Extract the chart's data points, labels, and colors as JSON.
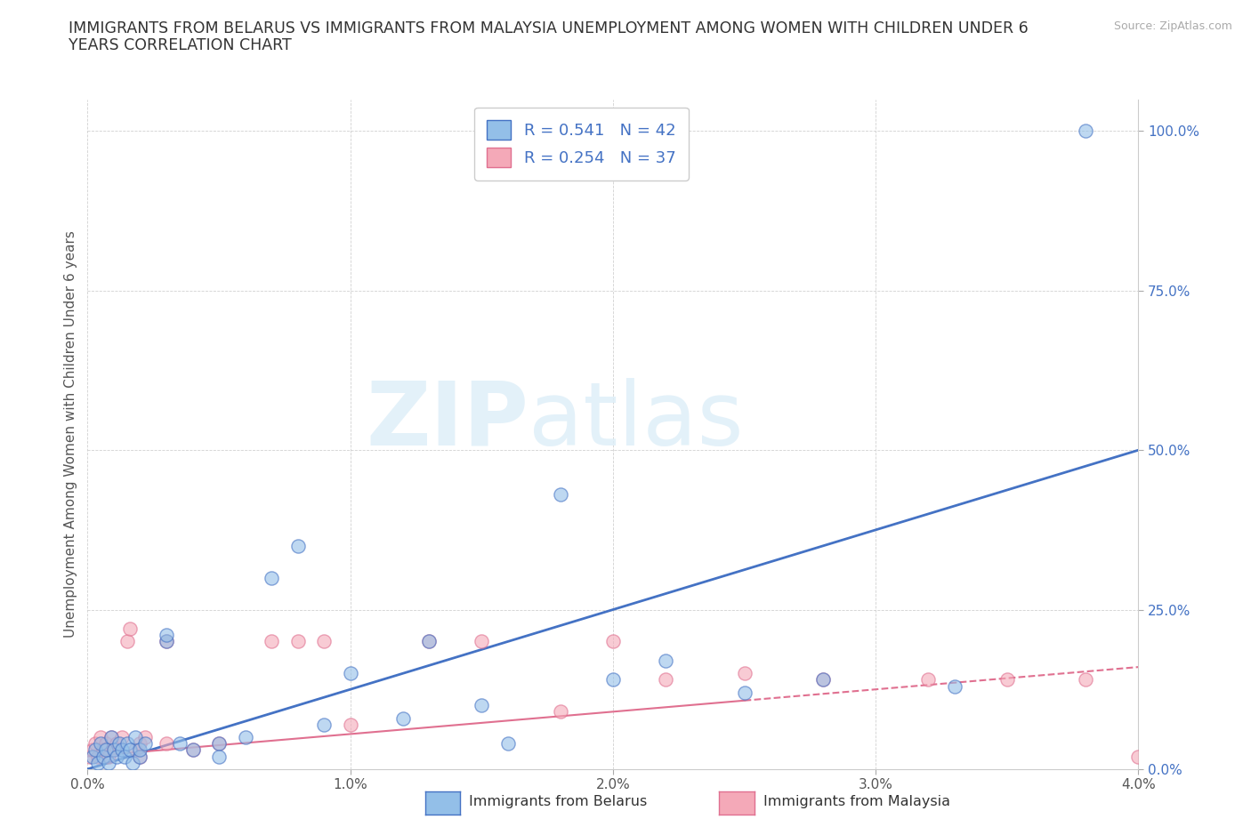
{
  "title_line1": "IMMIGRANTS FROM BELARUS VS IMMIGRANTS FROM MALAYSIA UNEMPLOYMENT AMONG WOMEN WITH CHILDREN UNDER 6",
  "title_line2": "YEARS CORRELATION CHART",
  "source": "Source: ZipAtlas.com",
  "ylabel": "Unemployment Among Women with Children Under 6 years",
  "xlabel_belarus": "Immigrants from Belarus",
  "xlabel_malaysia": "Immigrants from Malaysia",
  "xlim": [
    0.0,
    0.04
  ],
  "ylim": [
    0.0,
    1.05
  ],
  "yticks": [
    0.0,
    0.25,
    0.5,
    0.75,
    1.0
  ],
  "ytick_labels": [
    "0.0%",
    "25.0%",
    "50.0%",
    "75.0%",
    "100.0%"
  ],
  "xticks": [
    0.0,
    0.01,
    0.02,
    0.03,
    0.04
  ],
  "xtick_labels": [
    "0.0%",
    "1.0%",
    "2.0%",
    "3.0%",
    "4.0%"
  ],
  "R_belarus": 0.541,
  "N_belarus": 42,
  "R_malaysia": 0.254,
  "N_malaysia": 37,
  "color_belarus": "#93bfe8",
  "color_malaysia": "#f4a9b8",
  "line_color_belarus": "#4472c4",
  "line_color_malaysia": "#e07090",
  "background_color": "#ffffff",
  "watermark_zip": "ZIP",
  "watermark_atlas": "atlas",
  "title_fontsize": 12.5,
  "label_fontsize": 11,
  "tick_fontsize": 11,
  "belarus_x": [
    0.0002,
    0.0003,
    0.0004,
    0.0005,
    0.0006,
    0.0007,
    0.0008,
    0.0009,
    0.001,
    0.0011,
    0.0012,
    0.0013,
    0.0014,
    0.0015,
    0.0016,
    0.0017,
    0.0018,
    0.002,
    0.002,
    0.0022,
    0.003,
    0.003,
    0.0035,
    0.004,
    0.005,
    0.005,
    0.006,
    0.007,
    0.008,
    0.009,
    0.01,
    0.012,
    0.013,
    0.015,
    0.016,
    0.018,
    0.02,
    0.022,
    0.025,
    0.028,
    0.033,
    0.038
  ],
  "belarus_y": [
    0.02,
    0.03,
    0.01,
    0.04,
    0.02,
    0.03,
    0.01,
    0.05,
    0.03,
    0.02,
    0.04,
    0.03,
    0.02,
    0.04,
    0.03,
    0.01,
    0.05,
    0.02,
    0.03,
    0.04,
    0.2,
    0.21,
    0.04,
    0.03,
    0.04,
    0.02,
    0.05,
    0.3,
    0.35,
    0.07,
    0.15,
    0.08,
    0.2,
    0.1,
    0.04,
    0.43,
    0.14,
    0.17,
    0.12,
    0.14,
    0.13,
    1.0
  ],
  "malaysia_x": [
    0.0001,
    0.0002,
    0.0003,
    0.0004,
    0.0005,
    0.0006,
    0.0007,
    0.0008,
    0.0009,
    0.001,
    0.0011,
    0.0013,
    0.0015,
    0.0016,
    0.0018,
    0.002,
    0.002,
    0.0022,
    0.003,
    0.003,
    0.004,
    0.005,
    0.007,
    0.008,
    0.009,
    0.01,
    0.013,
    0.015,
    0.018,
    0.02,
    0.022,
    0.025,
    0.028,
    0.032,
    0.035,
    0.038,
    0.04
  ],
  "malaysia_y": [
    0.02,
    0.03,
    0.04,
    0.02,
    0.05,
    0.03,
    0.04,
    0.02,
    0.05,
    0.03,
    0.04,
    0.05,
    0.2,
    0.22,
    0.03,
    0.04,
    0.02,
    0.05,
    0.2,
    0.04,
    0.03,
    0.04,
    0.2,
    0.2,
    0.2,
    0.07,
    0.2,
    0.2,
    0.09,
    0.2,
    0.14,
    0.15,
    0.14,
    0.14,
    0.14,
    0.14,
    0.02
  ]
}
